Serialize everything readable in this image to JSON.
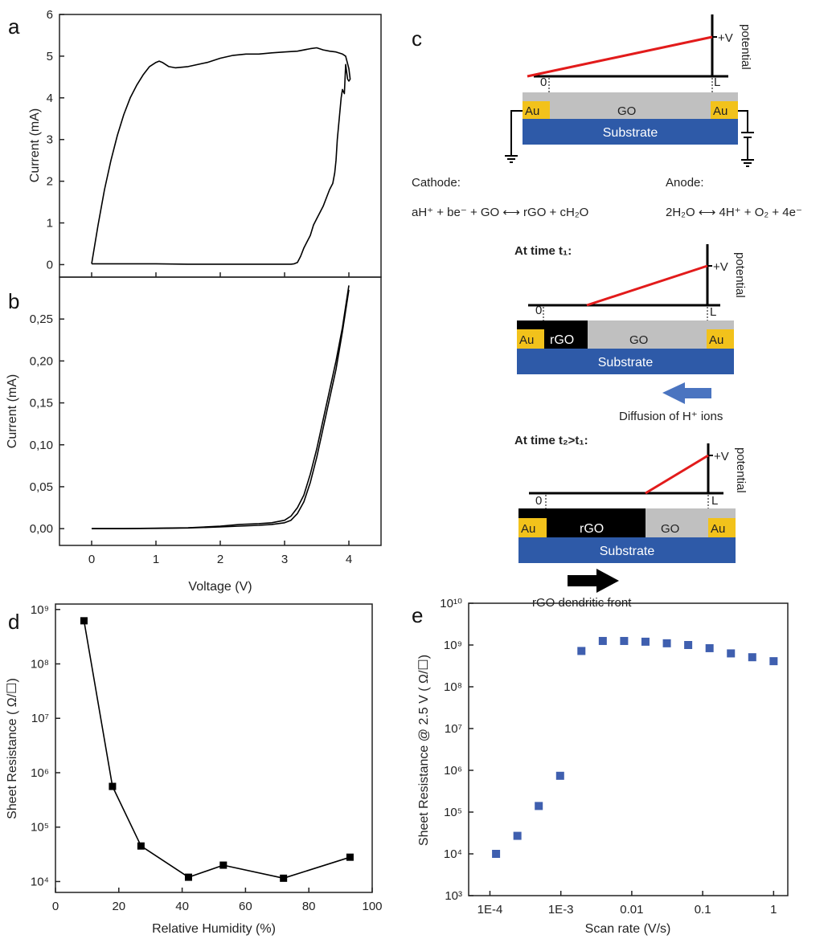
{
  "panels": {
    "a": "a",
    "b": "b",
    "c": "c",
    "d": "d",
    "e": "e"
  },
  "chart_data": [
    {
      "id": "a",
      "type": "line",
      "xlabel": "",
      "ylabel": "Current (mA)",
      "xlim": [
        -0.5,
        4.5
      ],
      "ylim": [
        -0.3,
        6
      ],
      "yticks": [
        "0",
        "1",
        "2",
        "3",
        "4",
        "5",
        "6"
      ],
      "ytick_values": [
        0,
        1,
        2,
        3,
        4,
        5,
        6
      ],
      "grid": false,
      "series": [
        {
          "x": [
            0,
            0.1,
            0.2,
            0.3,
            0.4,
            0.5,
            0.6,
            0.7,
            0.8,
            0.9,
            1.0,
            1.05,
            1.1,
            1.15,
            1.2,
            1.3,
            1.5,
            1.8,
            2.0,
            2.2,
            2.4,
            2.6,
            2.8,
            3.0,
            3.2,
            3.4,
            3.5,
            3.6,
            3.7,
            3.8,
            3.9,
            3.95,
            4.0,
            4.02,
            4.0,
            3.98,
            3.95,
            3.93,
            3.9,
            3.88,
            3.85,
            3.82,
            3.8,
            3.78,
            3.75,
            3.7,
            3.65,
            3.6,
            3.55,
            3.5,
            3.45,
            3.4,
            3.35,
            3.3,
            3.25,
            3.2,
            3.15,
            3.1,
            3.05,
            3.0,
            2.5,
            2.0,
            1.5,
            1.0,
            0.5,
            0
          ],
          "y": [
            0.02,
            0.95,
            1.8,
            2.5,
            3.1,
            3.6,
            4.0,
            4.3,
            4.55,
            4.75,
            4.85,
            4.88,
            4.85,
            4.8,
            4.75,
            4.72,
            4.75,
            4.85,
            4.95,
            5.02,
            5.05,
            5.05,
            5.08,
            5.1,
            5.12,
            5.18,
            5.2,
            5.15,
            5.12,
            5.1,
            5.05,
            5.0,
            4.7,
            4.45,
            4.4,
            4.45,
            4.8,
            4.1,
            4.2,
            4.0,
            3.5,
            3.0,
            2.5,
            2.2,
            1.95,
            1.8,
            1.6,
            1.4,
            1.25,
            1.1,
            0.95,
            0.7,
            0.55,
            0.4,
            0.2,
            0.05,
            0.02,
            0.01,
            0.01,
            0.01,
            0.01,
            0.01,
            0.01,
            0.02,
            0.02,
            0.02
          ]
        }
      ]
    },
    {
      "id": "b",
      "type": "line",
      "xlabel": "Voltage (V)",
      "ylabel": "Current (mA)",
      "xlim": [
        -0.5,
        4.5
      ],
      "ylim": [
        -0.02,
        0.3
      ],
      "xticks": [
        "0",
        "1",
        "2",
        "3",
        "4"
      ],
      "xtick_values": [
        0,
        1,
        2,
        3,
        4
      ],
      "yticks": [
        "0,00",
        "0,05",
        "0,10",
        "0,15",
        "0,20",
        "0,25"
      ],
      "ytick_values": [
        0,
        0.05,
        0.1,
        0.15,
        0.2,
        0.25
      ],
      "grid": false,
      "series": [
        {
          "x": [
            0,
            0.5,
            1.0,
            1.5,
            2.0,
            2.3,
            2.6,
            2.8,
            3.0,
            3.1,
            3.2,
            3.3,
            3.4,
            3.5,
            3.6,
            3.7,
            3.8,
            3.9,
            4.0
          ],
          "y": [
            0,
            0,
            0.0005,
            0.001,
            0.003,
            0.005,
            0.006,
            0.007,
            0.01,
            0.015,
            0.025,
            0.04,
            0.065,
            0.095,
            0.13,
            0.165,
            0.2,
            0.24,
            0.29
          ]
        },
        {
          "x": [
            0,
            0.5,
            1.0,
            1.5,
            2.0,
            2.3,
            2.6,
            2.8,
            3.0,
            3.1,
            3.2,
            3.3,
            3.4,
            3.5,
            3.6,
            3.7,
            3.8,
            3.9,
            4.0
          ],
          "y": [
            0,
            0,
            0.0003,
            0.0008,
            0.002,
            0.003,
            0.004,
            0.005,
            0.007,
            0.01,
            0.018,
            0.032,
            0.055,
            0.085,
            0.12,
            0.155,
            0.19,
            0.235,
            0.285
          ]
        }
      ]
    },
    {
      "id": "d",
      "type": "line",
      "xlabel": "Relative Humidity (%)",
      "ylabel": "Sheet Resistance ( Ω/☐)",
      "xlim": [
        0,
        100
      ],
      "ylim_log10": [
        3.8,
        9.1
      ],
      "yscale": "log",
      "xticks": [
        "0",
        "20",
        "40",
        "60",
        "80",
        "100"
      ],
      "xtick_values": [
        0,
        20,
        40,
        60,
        80,
        100
      ],
      "yticks": [
        "10⁴",
        "10⁵",
        "10⁶",
        "10⁷",
        "10⁸",
        "10⁹"
      ],
      "ytick_values": [
        10000,
        100000,
        1000000,
        10000000,
        100000000,
        1000000000
      ],
      "grid": false,
      "series": [
        {
          "marker": "square",
          "x": [
            9,
            18,
            27,
            42,
            53,
            72,
            93
          ],
          "y": [
            620000000,
            560000,
            45000,
            12000,
            20000,
            11500,
            28000
          ]
        }
      ]
    },
    {
      "id": "e",
      "type": "scatter",
      "xlabel": "Scan rate (V/s)",
      "ylabel": "Sheet Resistance @ 2.5 V ( Ω/☐)",
      "xscale": "log",
      "yscale": "log",
      "xlim_log10": [
        -4.3,
        0.2
      ],
      "ylim_log10": [
        3,
        10
      ],
      "xticks": [
        "1E-4",
        "1E-3",
        "0.01",
        "0.1",
        "1"
      ],
      "xtick_values": [
        0.0001,
        0.001,
        0.01,
        0.1,
        1
      ],
      "yticks": [
        "10³",
        "10⁴",
        "10⁵",
        "10⁶",
        "10⁷",
        "10⁸",
        "10⁹",
        "10¹⁰"
      ],
      "ytick_values": [
        1000,
        10000,
        100000,
        1000000,
        10000000,
        100000000,
        1000000000,
        10000000000
      ],
      "grid": false,
      "colors": {
        "marker": "#3f5faf"
      },
      "series": [
        {
          "marker": "square",
          "x": [
            0.000122,
            0.000244,
            0.000488,
            0.000977,
            0.00195,
            0.0039,
            0.0078,
            0.0156,
            0.03125,
            0.0625,
            0.125,
            0.25,
            0.5,
            1.0
          ],
          "y": [
            10000,
            27000,
            140000,
            740000,
            720000000,
            1250000000,
            1250000000,
            1200000000,
            1100000000,
            1000000000,
            840000000,
            630000000,
            510000000,
            410000000
          ]
        }
      ]
    }
  ],
  "schematic": {
    "potential_label": "potential",
    "plus_v": "+V",
    "zero": "0",
    "len": "L",
    "au": "Au",
    "go": "GO",
    "rgo": "rGO",
    "substrate": "Substrate",
    "cathode_title": "Cathode:",
    "anode_title": "Anode:",
    "cathode_eq": "aH⁺ + be⁻ + GO ⟷ rGO + cH₂O",
    "anode_eq": "2H₂O ⟷ 4H⁺ + O₂ + 4e⁻",
    "time1": "At time t₁:",
    "time2": "At time t₂>t₁:",
    "diffusion": "Diffusion of H⁺ ions",
    "front": "rGO dendritic front",
    "colors": {
      "au": "#f2c21b",
      "go": "#c0c0c0",
      "rgo": "#000000",
      "substrate": "#2e5aa8",
      "potential": "#e21b1b",
      "arrow_blue": "#4a74c0"
    }
  }
}
